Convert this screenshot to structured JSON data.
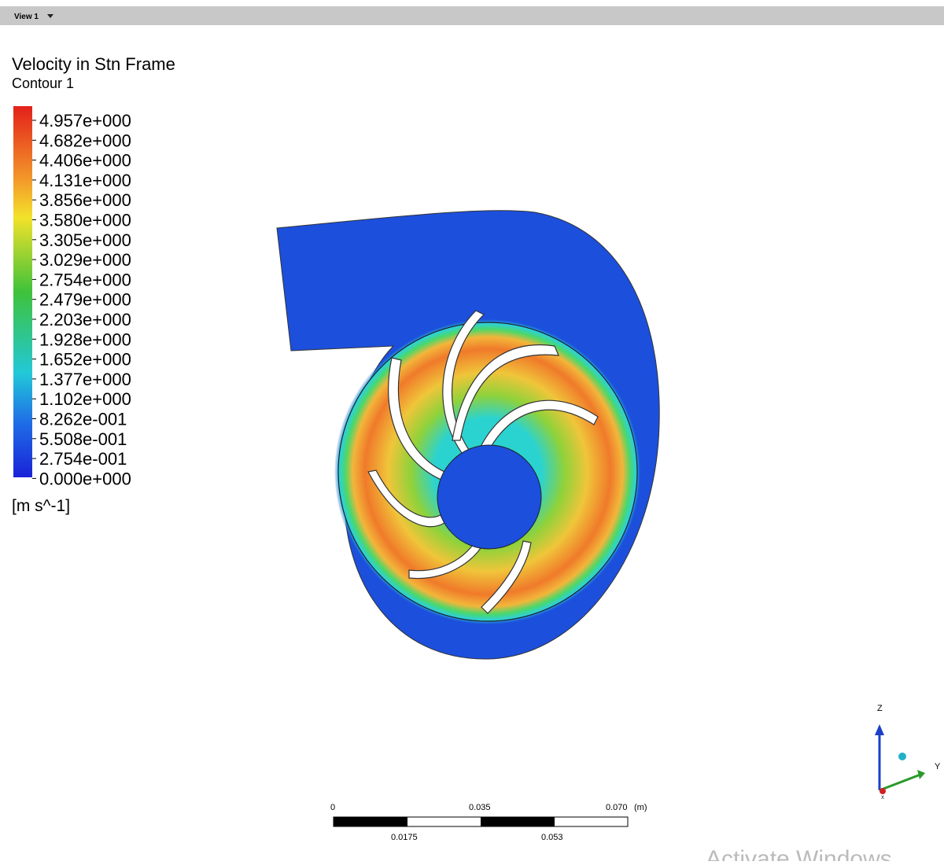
{
  "header": {
    "view": "View 1"
  },
  "legend": {
    "title": "Velocity in Stn Frame",
    "subtitle": "Contour 1",
    "labels": [
      "4.957e+000",
      "4.682e+000",
      "4.406e+000",
      "4.131e+000",
      "3.856e+000",
      "3.580e+000",
      "3.305e+000",
      "3.029e+000",
      "2.754e+000",
      "2.479e+000",
      "2.203e+000",
      "1.928e+000",
      "1.652e+000",
      "1.377e+000",
      "1.102e+000",
      "8.262e-001",
      "5.508e-001",
      "2.754e-001",
      "0.000e+000"
    ],
    "unit": "[m s^-1]"
  },
  "scale": {
    "top_labels": [
      "0",
      "0.035",
      "0.070"
    ],
    "unit": "(m)",
    "bottom_labels": [
      "0.0175",
      "0.053"
    ]
  },
  "triad": {
    "z": "Z",
    "y": "Y",
    "x": "X"
  },
  "watermark": "Activate Windows"
}
